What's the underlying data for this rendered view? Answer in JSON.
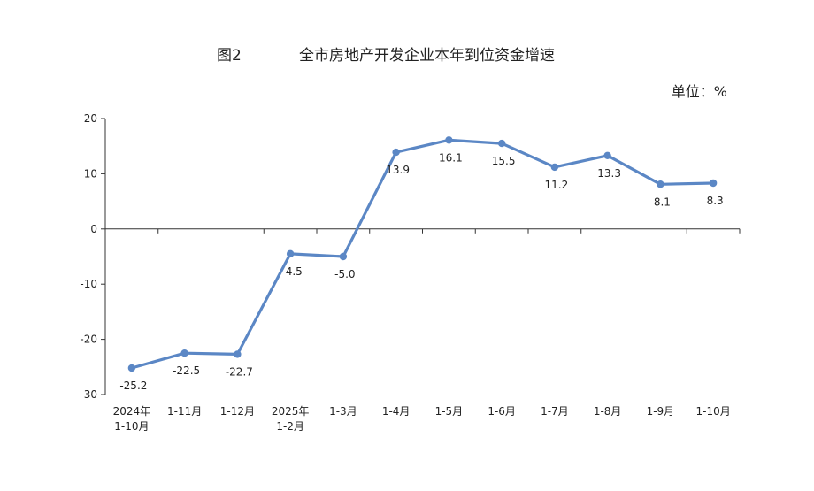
{
  "header": {
    "figure_label": "图2",
    "title": "全市房地产开发企业本年到位资金增速",
    "unit": "单位：%"
  },
  "chart_data": {
    "type": "line",
    "title": "全市房地产开发企业本年到位资金增速",
    "categories": [
      [
        "2024年",
        "1-10月"
      ],
      [
        "1-11月"
      ],
      [
        "1-12月"
      ],
      [
        "2025年",
        "1-2月"
      ],
      [
        "1-3月"
      ],
      [
        "1-4月"
      ],
      [
        "1-5月"
      ],
      [
        "1-6月"
      ],
      [
        "1-7月"
      ],
      [
        "1-8月"
      ],
      [
        "1-9月"
      ],
      [
        "1-10月"
      ]
    ],
    "values": [
      -25.2,
      -22.5,
      -22.7,
      -4.5,
      -5.0,
      13.9,
      16.1,
      15.5,
      11.2,
      13.3,
      8.1,
      8.3
    ],
    "data_labels": [
      "-25.2",
      "-22.5",
      "-22.7",
      "-4.5",
      "-5.0",
      "13.9",
      "16.1",
      "15.5",
      "11.2",
      "13.3",
      "8.1",
      "8.3"
    ],
    "label_position": [
      "below",
      "below",
      "below",
      "below",
      "below",
      "below",
      "below",
      "below",
      "below",
      "below",
      "below",
      "below"
    ],
    "ylim": [
      -30,
      20
    ],
    "yticks": [
      -30,
      -20,
      -10,
      0,
      10,
      20
    ],
    "line_color": "#5b87c5",
    "grid": false,
    "legend": "none"
  }
}
